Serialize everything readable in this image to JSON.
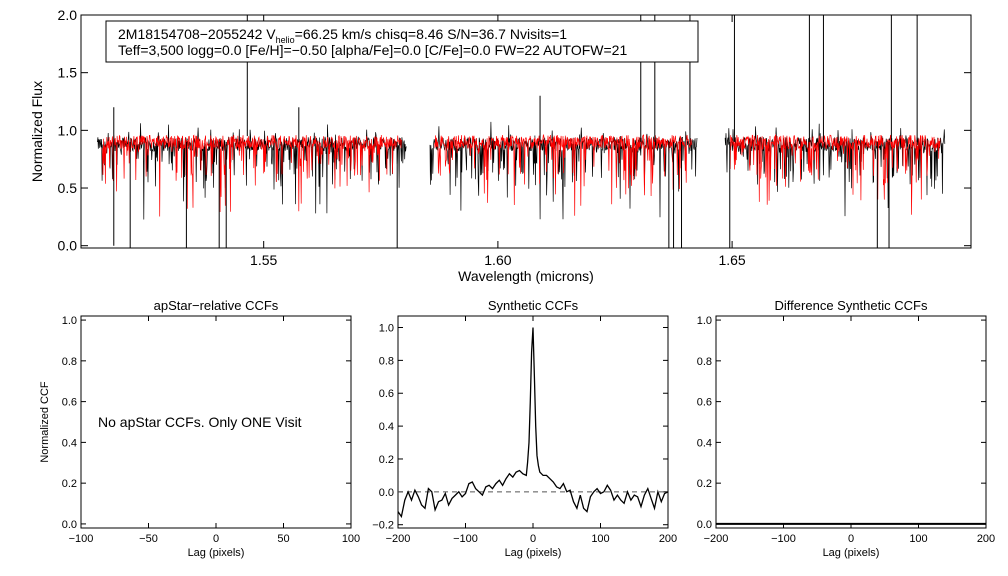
{
  "chart_data": [
    {
      "type": "line",
      "xlabel": "Wavelength (microns)",
      "ylabel": "Normalized Flux",
      "xlim": [
        1.511,
        1.701
      ],
      "ylim": [
        -0.02,
        2.0
      ],
      "xticks": [
        1.55,
        1.6,
        1.65
      ],
      "xtick_labels": [
        "1.55",
        "1.60",
        "1.65"
      ],
      "yticks": [
        0.0,
        0.5,
        1.0,
        1.5,
        2.0
      ],
      "ytick_labels": [
        "0.0",
        "0.5",
        "1.0",
        "1.5",
        "2.0"
      ],
      "annotation": {
        "line1_prefix": "2M18154708−2055242  V",
        "line1_sub": "helio",
        "line1_rest": "=66.25 km/s  chisq=8.46  S/N=36.7  Nvisits=1",
        "line2": "Teff=3,500 logg=0.0 [Fe/H]=−0.50 [alpha/Fe]=0.0 [C/Fe]=0.0 FW=22 AUTOFW=21"
      },
      "series": [
        {
          "name": "observed spectrum",
          "color": "#000000",
          "segments": [
            [
              1.5145,
              1.5805
            ],
            [
              1.5855,
              1.6425
            ],
            [
              1.6485,
              1.6955
            ]
          ],
          "continuum": 0.88
        },
        {
          "name": "synthetic spectrum",
          "color": "#ff0000",
          "segments": [
            [
              1.5155,
              1.5795
            ],
            [
              1.5865,
              1.6415
            ],
            [
              1.6495,
              1.6945
            ]
          ],
          "continuum": 0.9
        }
      ],
      "spikes": [
        {
          "x": 1.518,
          "low": 0.0,
          "high": 1.2
        },
        {
          "x": 1.5215,
          "low": -0.02,
          "high": 0.9
        },
        {
          "x": 1.5335,
          "low": -0.02,
          "high": 0.9
        },
        {
          "x": 1.5405,
          "low": -0.02,
          "high": 0.9
        },
        {
          "x": 1.542,
          "low": -0.02,
          "high": 0.9
        },
        {
          "x": 1.5465,
          "low": 0.95,
          "high": 2.0
        },
        {
          "x": 1.5575,
          "low": 0.9,
          "high": 1.2
        },
        {
          "x": 1.5785,
          "low": -0.02,
          "high": 0.9
        },
        {
          "x": 1.609,
          "low": 0.9,
          "high": 1.3
        },
        {
          "x": 1.6305,
          "low": 0.9,
          "high": 2.0
        },
        {
          "x": 1.6335,
          "low": 0.9,
          "high": 2.0
        },
        {
          "x": 1.6365,
          "low": -0.02,
          "high": 0.9
        },
        {
          "x": 1.6375,
          "low": -0.02,
          "high": 0.9
        },
        {
          "x": 1.6392,
          "low": -0.02,
          "high": 0.9
        },
        {
          "x": 1.641,
          "low": 0.9,
          "high": 2.0
        },
        {
          "x": 1.6495,
          "low": -0.02,
          "high": 0.9
        },
        {
          "x": 1.6505,
          "low": 0.9,
          "high": 2.0
        },
        {
          "x": 1.6665,
          "low": 0.9,
          "high": 2.0
        },
        {
          "x": 1.6695,
          "low": 0.9,
          "high": 2.0
        },
        {
          "x": 1.681,
          "low": -0.02,
          "high": 0.9
        },
        {
          "x": 1.6835,
          "low": -0.02,
          "high": 0.9
        },
        {
          "x": 1.684,
          "low": 0.9,
          "high": 2.0
        },
        {
          "x": 1.6895,
          "low": 0.9,
          "high": 2.0
        }
      ]
    },
    {
      "type": "line",
      "title": "apStar−relative CCFs",
      "xlabel": "Lag (pixels)",
      "ylabel": "Normalized CCF",
      "xlim": [
        -100,
        100
      ],
      "ylim": [
        -0.02,
        1.02
      ],
      "xticks": [
        -100,
        -50,
        0,
        50,
        100
      ],
      "xtick_labels": [
        "−100",
        "−50",
        "0",
        "50",
        "100"
      ],
      "yticks": [
        0.0,
        0.2,
        0.4,
        0.6,
        0.8,
        1.0
      ],
      "ytick_labels": [
        "0.0",
        "0.2",
        "0.4",
        "0.6",
        "0.8",
        "1.0"
      ],
      "annotation": "No apStar CCFs.  Only ONE Visit",
      "series": []
    },
    {
      "type": "line",
      "title": "Synthetic CCFs",
      "xlabel": "Lag (pixels)",
      "ylabel": "",
      "xlim": [
        -200,
        200
      ],
      "ylim": [
        -0.22,
        1.07
      ],
      "xticks": [
        -200,
        -100,
        0,
        100,
        200
      ],
      "xtick_labels": [
        "−200",
        "−100",
        "0",
        "100",
        "200"
      ],
      "yticks": [
        -0.2,
        0.0,
        0.2,
        0.4,
        0.6,
        0.8,
        1.0
      ],
      "ytick_labels": [
        "−0.2",
        "0.0",
        "0.2",
        "0.4",
        "0.6",
        "0.8",
        "1.0"
      ],
      "reference_line": {
        "y": 0.0,
        "style": "dashed"
      },
      "series": [
        {
          "name": "CCF",
          "color": "#000000",
          "x": [
            -200,
            -195,
            -190,
            -185,
            -180,
            -175,
            -170,
            -165,
            -160,
            -155,
            -150,
            -145,
            -140,
            -135,
            -130,
            -125,
            -120,
            -115,
            -110,
            -105,
            -100,
            -95,
            -90,
            -85,
            -80,
            -75,
            -70,
            -65,
            -60,
            -55,
            -50,
            -45,
            -40,
            -35,
            -30,
            -25,
            -20,
            -15,
            -10,
            -8,
            -6,
            -4,
            -2,
            0,
            2,
            4,
            6,
            8,
            10,
            15,
            20,
            25,
            30,
            35,
            40,
            45,
            50,
            55,
            60,
            65,
            70,
            75,
            80,
            85,
            90,
            95,
            100,
            105,
            110,
            115,
            120,
            125,
            130,
            135,
            140,
            145,
            150,
            155,
            160,
            165,
            170,
            175,
            180,
            185,
            190,
            195,
            200
          ],
          "y": [
            -0.12,
            -0.15,
            -0.05,
            0.0,
            -0.05,
            0.01,
            -0.03,
            -0.08,
            -0.1,
            0.02,
            0.0,
            -0.11,
            -0.06,
            -0.05,
            -0.01,
            -0.08,
            -0.04,
            -0.02,
            0.0,
            -0.03,
            -0.01,
            0.05,
            0.06,
            0.02,
            0.0,
            -0.02,
            0.03,
            0.04,
            0.02,
            0.05,
            0.07,
            0.04,
            0.08,
            0.11,
            0.09,
            0.12,
            0.13,
            0.11,
            0.1,
            0.18,
            0.3,
            0.55,
            0.85,
            1.0,
            0.7,
            0.4,
            0.22,
            0.16,
            0.12,
            0.1,
            0.1,
            0.08,
            0.06,
            0.03,
            0.02,
            0.05,
            0.0,
            0.01,
            -0.06,
            -0.1,
            -0.02,
            -0.1,
            -0.12,
            -0.03,
            0.0,
            0.02,
            -0.01,
            0.0,
            0.04,
            0.01,
            -0.05,
            -0.02,
            -0.05,
            -0.07,
            0.0,
            -0.05,
            -0.02,
            -0.03,
            -0.09,
            -0.02,
            0.02,
            -0.04,
            -0.1,
            0.0,
            -0.06,
            -0.01,
            0.0
          ]
        }
      ]
    },
    {
      "type": "line",
      "title": "Difference Synthetic CCFs",
      "xlabel": "Lag (pixels)",
      "ylabel": "",
      "xlim": [
        -200,
        200
      ],
      "ylim": [
        -0.02,
        1.02
      ],
      "xticks": [
        -200,
        -100,
        0,
        100,
        200
      ],
      "xtick_labels": [
        "−200",
        "−100",
        "0",
        "100",
        "200"
      ],
      "yticks": [
        0.0,
        0.2,
        0.4,
        0.6,
        0.8,
        1.0
      ],
      "ytick_labels": [
        "0.0",
        "0.2",
        "0.4",
        "0.6",
        "0.8",
        "1.0"
      ],
      "series": [
        {
          "name": "difference CCF",
          "color": "#000000",
          "x": [
            -200,
            200
          ],
          "y": [
            0.0,
            0.0
          ]
        }
      ]
    }
  ]
}
